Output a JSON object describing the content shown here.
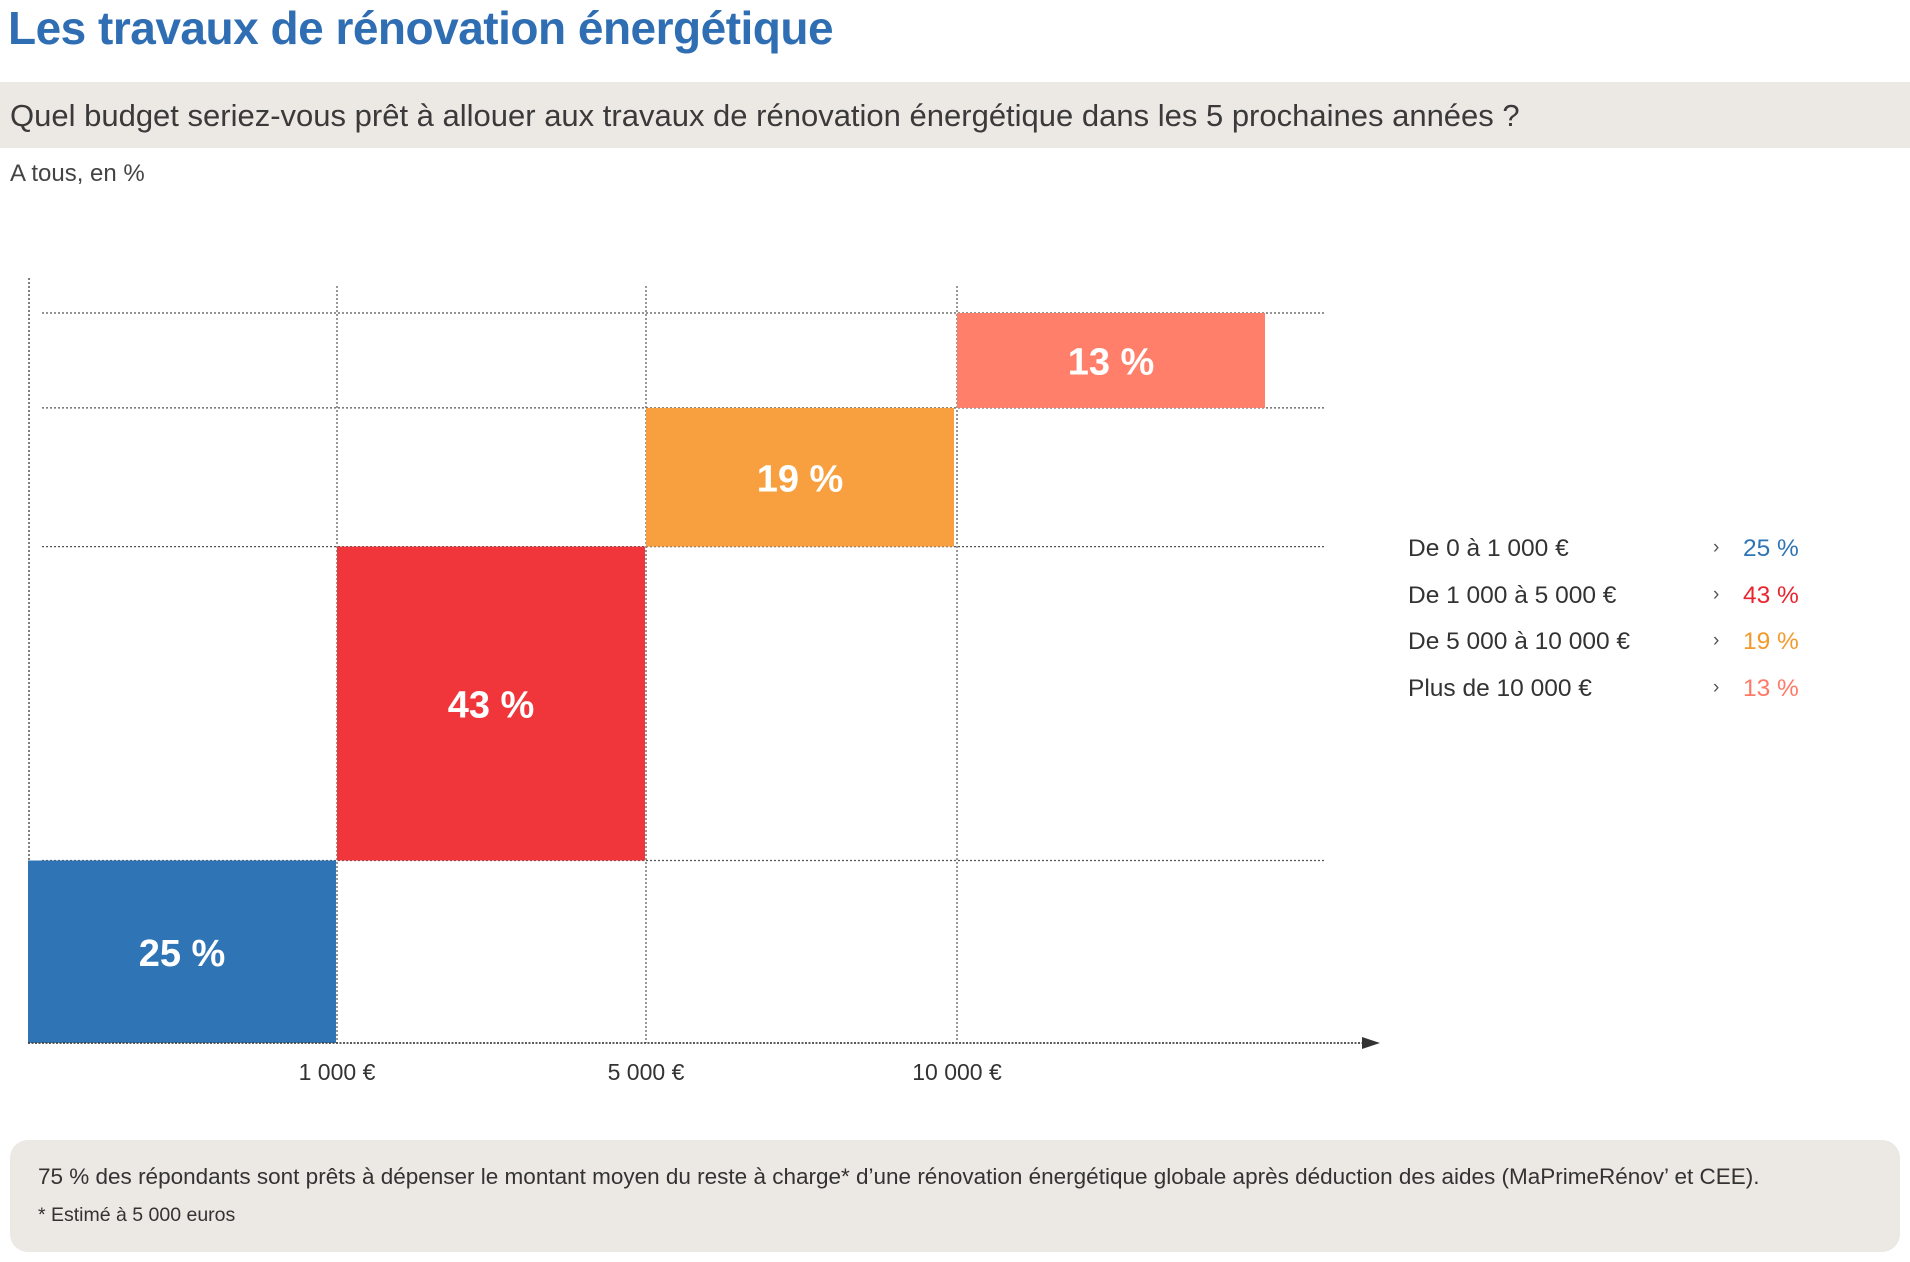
{
  "header": {
    "title": "Les travaux de rénovation énergétique",
    "question": "Quel budget seriez-vous prêt à allouer aux travaux de rénovation énergétique dans les 5 prochaines années ?",
    "subtitle": "A tous, en %"
  },
  "chart_data": {
    "type": "bar",
    "title": "Quel budget seriez-vous prêt à allouer aux travaux de rénovation énergétique dans les 5 prochaines années ?",
    "xlabel": "",
    "ylabel": "",
    "x_ticks": [
      "1 000 €",
      "5 000 €",
      "10 000 €"
    ],
    "categories": [
      "De 0 à 1 000 €",
      "De 1 000 à 5 000 €",
      "De 5 000 à 10 000 €",
      "Plus de 10 000 €"
    ],
    "values": [
      25,
      43,
      19,
      13
    ],
    "labels": [
      "25 %",
      "43 %",
      "19 %",
      "13 %"
    ],
    "colors": [
      "#2f74b5",
      "#f0353b",
      "#f8a03f",
      "#ff7f6b"
    ],
    "grid": true,
    "legend_position": "right"
  },
  "legend": {
    "arrow": "›",
    "items": [
      {
        "label": "De 0 à 1 000 €",
        "value": "25 %",
        "color": "#2f74b5"
      },
      {
        "label": "De 1 000 à 5 000 €",
        "value": "43 %",
        "color": "#e8242f"
      },
      {
        "label": "De 5 000 à 10 000 €",
        "value": "19 %",
        "color": "#f39a2d"
      },
      {
        "label": "Plus de 10 000 €",
        "value": "13 %",
        "color": "#ff7a66"
      }
    ]
  },
  "note": {
    "text": "75 % des répondants sont prêts à dépenser le montant moyen du reste à charge* d’une rénovation énergétique globale après déduction des aides (MaPrimeRénov’ et CEE).",
    "footnote": "* Estimé à 5 000 euros"
  }
}
